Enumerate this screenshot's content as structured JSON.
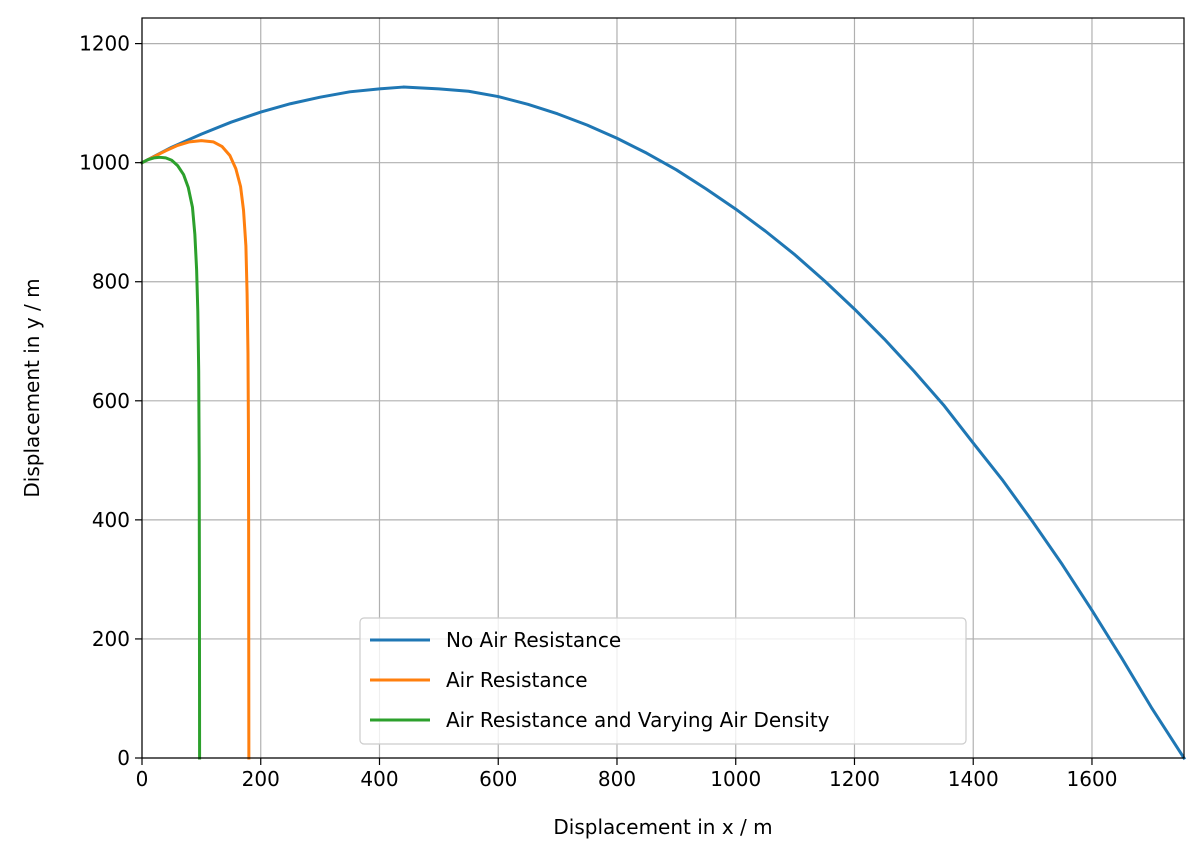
{
  "chart_data": {
    "type": "line",
    "title": "",
    "xlabel": "Displacement in x / m",
    "ylabel": "Displacement in y / m",
    "xlim": [
      0,
      1755
    ],
    "ylim": [
      0,
      1243
    ],
    "xticks": [
      0,
      200,
      400,
      600,
      800,
      1000,
      1200,
      1400,
      1600
    ],
    "yticks": [
      0,
      200,
      400,
      600,
      800,
      1000,
      1200
    ],
    "grid": true,
    "legend_position": "lower center",
    "series": [
      {
        "name": "No Air Resistance",
        "color": "#1f77b4",
        "points": [
          [
            0,
            1000
          ],
          [
            50,
            1026
          ],
          [
            100,
            1048
          ],
          [
            150,
            1068
          ],
          [
            200,
            1085
          ],
          [
            250,
            1099
          ],
          [
            300,
            1110
          ],
          [
            350,
            1119
          ],
          [
            400,
            1124
          ],
          [
            440,
            1127
          ],
          [
            500,
            1124
          ],
          [
            550,
            1120
          ],
          [
            600,
            1111
          ],
          [
            650,
            1098
          ],
          [
            700,
            1082
          ],
          [
            750,
            1063
          ],
          [
            800,
            1041
          ],
          [
            850,
            1016
          ],
          [
            900,
            988
          ],
          [
            950,
            956
          ],
          [
            1000,
            922
          ],
          [
            1050,
            885
          ],
          [
            1100,
            845
          ],
          [
            1150,
            801
          ],
          [
            1200,
            754
          ],
          [
            1250,
            704
          ],
          [
            1300,
            650
          ],
          [
            1350,
            593
          ],
          [
            1400,
            529
          ],
          [
            1450,
            466
          ],
          [
            1500,
            397
          ],
          [
            1550,
            325
          ],
          [
            1600,
            248
          ],
          [
            1650,
            168
          ],
          [
            1700,
            85
          ],
          [
            1755,
            0
          ]
        ]
      },
      {
        "name": "Air Resistance",
        "color": "#ff7f0e",
        "points": [
          [
            0,
            1000
          ],
          [
            20,
            1010
          ],
          [
            40,
            1020
          ],
          [
            60,
            1029
          ],
          [
            80,
            1035
          ],
          [
            100,
            1037
          ],
          [
            120,
            1035
          ],
          [
            135,
            1027
          ],
          [
            148,
            1012
          ],
          [
            158,
            990
          ],
          [
            166,
            960
          ],
          [
            171,
            920
          ],
          [
            175,
            860
          ],
          [
            177,
            780
          ],
          [
            178.5,
            680
          ],
          [
            179.2,
            560
          ],
          [
            179.6,
            400
          ],
          [
            179.8,
            200
          ],
          [
            180,
            0
          ]
        ]
      },
      {
        "name": "Air Resistance and Varying Air Density",
        "color": "#2ca02c",
        "points": [
          [
            0,
            1000
          ],
          [
            10,
            1005
          ],
          [
            20,
            1008
          ],
          [
            30,
            1009
          ],
          [
            40,
            1008
          ],
          [
            50,
            1004
          ],
          [
            60,
            995
          ],
          [
            70,
            980
          ],
          [
            78,
            958
          ],
          [
            85,
            925
          ],
          [
            89,
            880
          ],
          [
            92,
            820
          ],
          [
            94,
            750
          ],
          [
            95.5,
            650
          ],
          [
            96.3,
            500
          ],
          [
            96.7,
            300
          ],
          [
            96.9,
            120
          ],
          [
            97,
            0
          ]
        ]
      }
    ]
  }
}
